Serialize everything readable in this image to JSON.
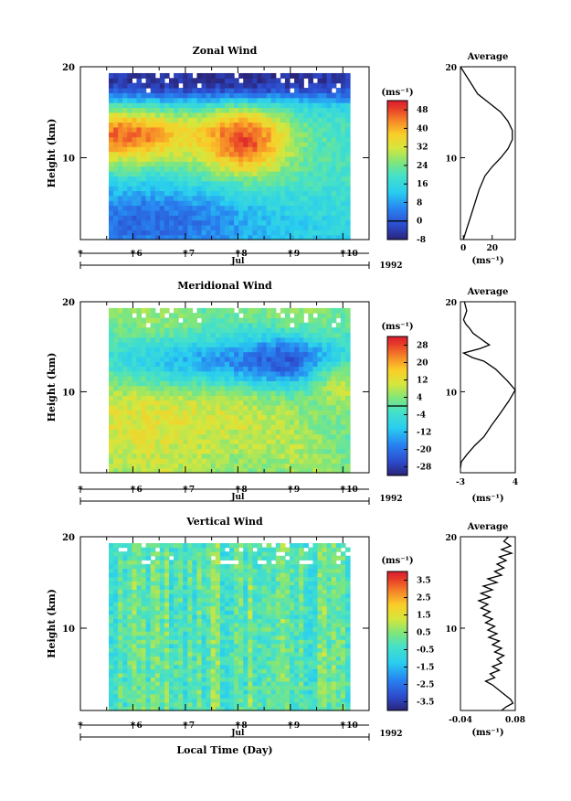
{
  "chart_data": [
    {
      "type": "heatmap",
      "title": "Zonal Wind",
      "ylabel": "Height (km)",
      "y_ticks": [
        10,
        20
      ],
      "ylim": [
        1,
        20
      ],
      "x_ticks": [
        "6",
        "7",
        "8",
        "9",
        "10"
      ],
      "xlim": [
        5,
        10.5
      ],
      "month_label": "Jul",
      "year_label": "1992",
      "colorbar": {
        "unit": "(ms⁻¹)",
        "ticks": [
          "48",
          "40",
          "32",
          "24",
          "16",
          "8",
          "0",
          "-8"
        ],
        "range": [
          -8,
          52
        ],
        "zero_contour": 0
      },
      "features": [
        {
          "desc": "jet core",
          "time_range": [
            5.0,
            6.6
          ],
          "height_range": [
            11,
            14
          ],
          "value": 46
        },
        {
          "desc": "jet core",
          "time_range": [
            7.6,
            8.6
          ],
          "height_range": [
            10,
            14
          ],
          "value": 48
        },
        {
          "desc": "weak lower winds",
          "time_range": [
            5.0,
            7.5
          ],
          "height_range": [
            1,
            5
          ],
          "value": 2
        },
        {
          "desc": "stratospheric easterlies",
          "time_range": [
            5.0,
            10.4
          ],
          "height_range": [
            17.5,
            20
          ],
          "value": -6
        }
      ],
      "average_profile": {
        "title": "Average",
        "xlabel": "(ms⁻¹)",
        "x_ticks": [
          "0",
          "20"
        ],
        "xlim": [
          -2,
          36
        ],
        "y_ticks": [
          10,
          20
        ],
        "points": [
          [
            -2,
            20
          ],
          [
            4,
            18.5
          ],
          [
            10,
            17
          ],
          [
            18,
            16
          ],
          [
            26,
            15
          ],
          [
            31,
            14
          ],
          [
            34,
            13
          ],
          [
            34,
            12
          ],
          [
            31,
            11
          ],
          [
            26,
            10
          ],
          [
            20,
            9
          ],
          [
            15,
            8
          ],
          [
            11,
            6.5
          ],
          [
            8,
            5
          ],
          [
            5,
            3.5
          ],
          [
            2,
            2
          ],
          [
            0,
            1
          ]
        ]
      }
    },
    {
      "type": "heatmap",
      "title": "Meridional Wind",
      "ylabel": "Height (km)",
      "y_ticks": [
        10,
        20
      ],
      "ylim": [
        1,
        20
      ],
      "x_ticks": [
        "6",
        "7",
        "8",
        "9",
        "10"
      ],
      "xlim": [
        5,
        10.5
      ],
      "month_label": "Jul",
      "year_label": "1992",
      "colorbar": {
        "unit": "(ms⁻¹)",
        "ticks": [
          "28",
          "20",
          "12",
          "4",
          "-4",
          "-12",
          "-20",
          "-28"
        ],
        "range": [
          -32,
          32
        ],
        "zero_contour": 0
      },
      "features": [
        {
          "desc": "northerly flow",
          "time_range": [
            5.0,
            8.0
          ],
          "height_range": [
            4,
            12
          ],
          "value": 12
        },
        {
          "desc": "southerly band",
          "time_range": [
            6.5,
            10.0
          ],
          "height_range": [
            12,
            15
          ],
          "value": -16
        },
        {
          "desc": "southerly core",
          "time_range": [
            8.5,
            9.3
          ],
          "height_range": [
            12.5,
            14.5
          ],
          "value": -24
        },
        {
          "desc": "northerly patch",
          "time_range": [
            9.7,
            10.4
          ],
          "height_range": [
            9,
            12
          ],
          "value": 8
        }
      ],
      "average_profile": {
        "title": "Average",
        "xlabel": "(ms⁻¹)",
        "x_ticks": [
          "-3",
          "4"
        ],
        "xlim": [
          -3,
          4
        ],
        "y_ticks": [
          10,
          20
        ],
        "points": [
          [
            -2.5,
            20
          ],
          [
            -2.2,
            19
          ],
          [
            -2.6,
            18
          ],
          [
            -2.3,
            17.5
          ],
          [
            -1.8,
            17
          ],
          [
            -1.4,
            16.5
          ],
          [
            -0.6,
            16
          ],
          [
            0.2,
            15.5
          ],
          [
            0.7,
            15.2
          ],
          [
            -0.5,
            14.8
          ],
          [
            -2.6,
            14.3
          ],
          [
            -1.5,
            13.8
          ],
          [
            0.0,
            13.4
          ],
          [
            1.5,
            12.5
          ],
          [
            3.0,
            11.2
          ],
          [
            4.0,
            10.2
          ],
          [
            3.2,
            9.0
          ],
          [
            2.0,
            7.5
          ],
          [
            1.0,
            6.3
          ],
          [
            0.0,
            5.0
          ],
          [
            -1.2,
            4.0
          ],
          [
            -2.2,
            3.0
          ],
          [
            -2.9,
            2.2
          ],
          [
            -3.0,
            1.5
          ]
        ]
      }
    },
    {
      "type": "heatmap",
      "title": "Vertical Wind",
      "ylabel": "Height (km)",
      "xlabel": "Local Time (Day)",
      "y_ticks": [
        10,
        20
      ],
      "ylim": [
        1,
        20
      ],
      "x_ticks": [
        "6",
        "7",
        "8",
        "9",
        "10"
      ],
      "xlim": [
        5,
        10.5
      ],
      "month_label": "Jul",
      "year_label": "1992",
      "colorbar": {
        "unit": "(ms⁻¹)",
        "ticks": [
          "3.5",
          "2.5",
          "1.5",
          "0.5",
          "-0.5",
          "-1.5",
          "-2.5",
          "-3.5"
        ],
        "range": [
          -4,
          4
        ]
      },
      "features": [
        {
          "desc": "near-zero vertical wind with fine-scale vertical streaks",
          "time_range": [
            5.0,
            10.4
          ],
          "height_range": [
            1,
            20
          ],
          "value": 0
        }
      ],
      "average_profile": {
        "title": "Average",
        "xlabel": "(ms⁻¹)",
        "x_ticks": [
          "-0.04",
          "0.08"
        ],
        "xlim": [
          -0.04,
          0.08
        ],
        "y_ticks": [
          10,
          20
        ],
        "points": [
          [
            0.065,
            20
          ],
          [
            0.055,
            19.5
          ],
          [
            0.07,
            19
          ],
          [
            0.05,
            18.6
          ],
          [
            0.072,
            18.2
          ],
          [
            0.045,
            17.8
          ],
          [
            0.06,
            17.4
          ],
          [
            0.04,
            17
          ],
          [
            0.055,
            16.6
          ],
          [
            0.035,
            16.2
          ],
          [
            0.05,
            15.8
          ],
          [
            0.02,
            15.4
          ],
          [
            0.04,
            15
          ],
          [
            0.01,
            14.6
          ],
          [
            0.03,
            14.2
          ],
          [
            0.005,
            13.8
          ],
          [
            0.025,
            13.4
          ],
          [
            0.0,
            13.0
          ],
          [
            0.02,
            12.6
          ],
          [
            0.005,
            12.2
          ],
          [
            0.025,
            11.8
          ],
          [
            0.01,
            11.4
          ],
          [
            0.03,
            11
          ],
          [
            0.015,
            10.6
          ],
          [
            0.035,
            10.2
          ],
          [
            0.02,
            9.8
          ],
          [
            0.04,
            9.4
          ],
          [
            0.022,
            9.0
          ],
          [
            0.045,
            8.6
          ],
          [
            0.03,
            8.2
          ],
          [
            0.05,
            7.8
          ],
          [
            0.035,
            7.4
          ],
          [
            0.055,
            7.0
          ],
          [
            0.04,
            6.6
          ],
          [
            0.05,
            6.2
          ],
          [
            0.03,
            5.8
          ],
          [
            0.045,
            5.4
          ],
          [
            0.025,
            5.0
          ],
          [
            0.035,
            4.6
          ],
          [
            0.015,
            4.2
          ],
          [
            0.03,
            3.8
          ],
          [
            0.04,
            3.4
          ],
          [
            0.05,
            3.0
          ],
          [
            0.06,
            2.6
          ],
          [
            0.07,
            2.2
          ],
          [
            0.075,
            1.8
          ],
          [
            0.06,
            1.4
          ],
          [
            0.05,
            1.0
          ]
        ]
      }
    }
  ]
}
